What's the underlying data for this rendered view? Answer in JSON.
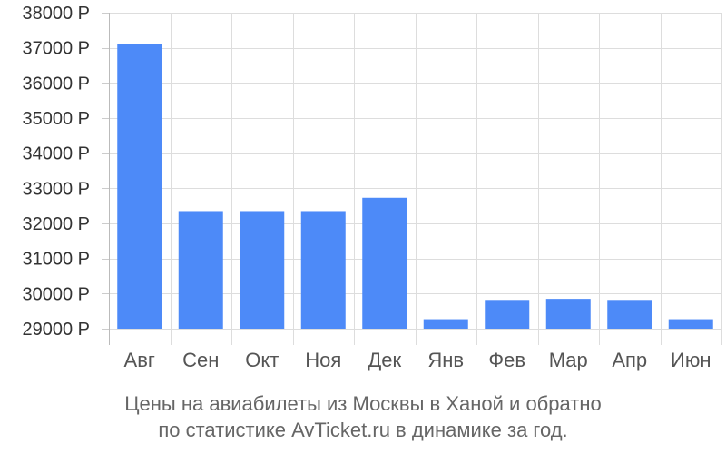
{
  "chart_data": {
    "type": "bar",
    "categories": [
      "Авг",
      "Сен",
      "Окт",
      "Ноя",
      "Дек",
      "Янв",
      "Фев",
      "Мар",
      "Апр",
      "Июн"
    ],
    "values": [
      37100,
      32350,
      32350,
      32350,
      32730,
      29270,
      29820,
      29850,
      29820,
      29270
    ],
    "ylim": [
      29000,
      38000
    ],
    "yticks": [
      29000,
      30000,
      31000,
      32000,
      33000,
      34000,
      35000,
      36000,
      37000,
      38000
    ],
    "ytick_labels": [
      "29000 Р",
      "30000 Р",
      "31000 Р",
      "32000 Р",
      "33000 Р",
      "34000 Р",
      "35000 Р",
      "36000 Р",
      "37000 Р",
      "38000 Р"
    ],
    "grid": true,
    "bar_color": "#4d8af8"
  },
  "caption": {
    "line1": "Цены на авиабилеты из Москвы в Ханой и обратно",
    "line2": "по статистике AvTicket.ru в динамике за год."
  }
}
